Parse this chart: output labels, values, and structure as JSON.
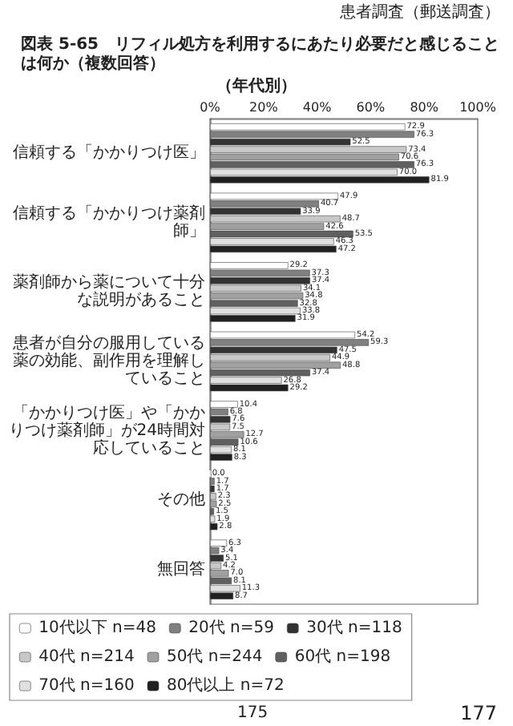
{
  "chart_data": {
    "type": "bar",
    "orientation": "horizontal",
    "title": "図表 5-65　リフィル処方を利用するにあたり必要だと感じることは何か（複数回答）",
    "subtitle": "（年代別）",
    "annotations": [
      "患者調査（郵送調査）",
      "175",
      "177"
    ],
    "categories": [
      "信頼する「かかりつけ医」",
      "信頼する「かかりつけ薬剤師」",
      "薬剤師から薬について十分な説明があること",
      "患者が自分の服用している薬の効能、副作用を理解していること",
      "「かかりつけ医」や「かかりつけ薬剤師」が24時間対応していること",
      "その他",
      "無回答"
    ],
    "series": [
      {
        "name": "10代以下 n=48",
        "color": "#ffffff",
        "values": [
          72.9,
          47.9,
          29.2,
          54.2,
          10.4,
          0.0,
          6.3
        ],
        "value_labels": [
          "72.9",
          "47.9",
          "29.2",
          "54.2",
          "10.4",
          "0.0",
          "6.3"
        ]
      },
      {
        "name": "20代 n=59",
        "color": "#808080",
        "values": [
          76.3,
          40.7,
          37.3,
          59.3,
          6.8,
          1.7,
          3.4
        ],
        "value_labels": [
          "76.3",
          "40.7",
          "37.3",
          "59.3",
          "6.8",
          "1.7",
          "3.4"
        ]
      },
      {
        "name": "30代 n=118",
        "color": "#333333",
        "values": [
          52.5,
          33.9,
          37.4,
          47.5,
          7.6,
          1.7,
          5.1
        ],
        "value_labels": [
          "52.5",
          "33.9",
          "37.4",
          "47.5",
          "7.6",
          "1.7",
          "5.1"
        ]
      },
      {
        "name": "40代 n=214",
        "color": "#c8c8c8",
        "values": [
          73.4,
          48.7,
          34.1,
          44.9,
          7.5,
          2.3,
          4.2
        ],
        "value_labels": [
          "73.4",
          "48.7",
          "34.1",
          "44.9",
          "7.5",
          "2.3",
          "4.2"
        ]
      },
      {
        "name": "50代 n=244",
        "color": "#a0a0a0",
        "values": [
          70.6,
          42.6,
          34.8,
          48.8,
          12.7,
          2.5,
          7.0
        ],
        "value_labels": [
          "70.6",
          "42.6",
          "34.8",
          "48.8",
          "12.7",
          "2.5",
          "7.0"
        ]
      },
      {
        "name": "60代 n=198",
        "color": "#606060",
        "values": [
          76.3,
          53.5,
          32.8,
          37.4,
          10.6,
          1.5,
          8.1
        ],
        "value_labels": [
          "76.3",
          "53.5",
          "32.8",
          "37.4",
          "10.6",
          "1.5",
          "8.1"
        ]
      },
      {
        "name": "70代 n=160",
        "color": "#e0e0e0",
        "values": [
          70.0,
          46.3,
          33.8,
          26.8,
          8.1,
          1.9,
          11.3
        ],
        "value_labels": [
          "70.0",
          "46.3",
          "33.8",
          "26.8",
          "8.1",
          "1.9",
          "11.3"
        ]
      },
      {
        "name": "80代以上 n=72",
        "color": "#202020",
        "values": [
          81.9,
          47.2,
          31.9,
          29.2,
          8.3,
          2.8,
          8.7
        ],
        "value_labels": [
          "81.9",
          "47.2",
          "31.9",
          "29.2",
          "8.3",
          "2.8",
          "8.7"
        ]
      }
    ],
    "xlim": [
      0,
      100
    ],
    "xticks": [
      {
        "value": 0,
        "label": "0%"
      },
      {
        "value": 20,
        "label": "20%"
      },
      {
        "value": 40,
        "label": "40%"
      },
      {
        "value": 60,
        "label": "60%"
      },
      {
        "value": 80,
        "label": "80%"
      },
      {
        "value": 100,
        "label": "100%"
      }
    ],
    "grid": false,
    "legend": "bottom"
  }
}
